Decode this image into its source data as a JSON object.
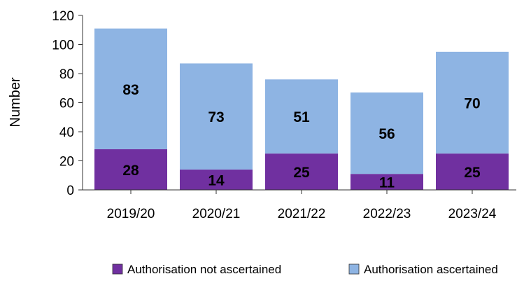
{
  "chart_data": {
    "type": "bar",
    "stacked": true,
    "categories": [
      "2019/20",
      "2020/21",
      "2021/22",
      "2022/23",
      "2023/24"
    ],
    "series": [
      {
        "name": "Authorisation not ascertained",
        "values": [
          28,
          14,
          25,
          11,
          25
        ],
        "color": "#7030a0"
      },
      {
        "name": "Authorisation ascertained",
        "values": [
          83,
          73,
          51,
          56,
          70
        ],
        "color": "#8eb4e3"
      }
    ],
    "ylabel": "Number",
    "ylim": [
      0,
      120
    ],
    "yticks": [
      0,
      20,
      40,
      60,
      80,
      100,
      120
    ],
    "grid": false,
    "legend": "bottom-right"
  }
}
